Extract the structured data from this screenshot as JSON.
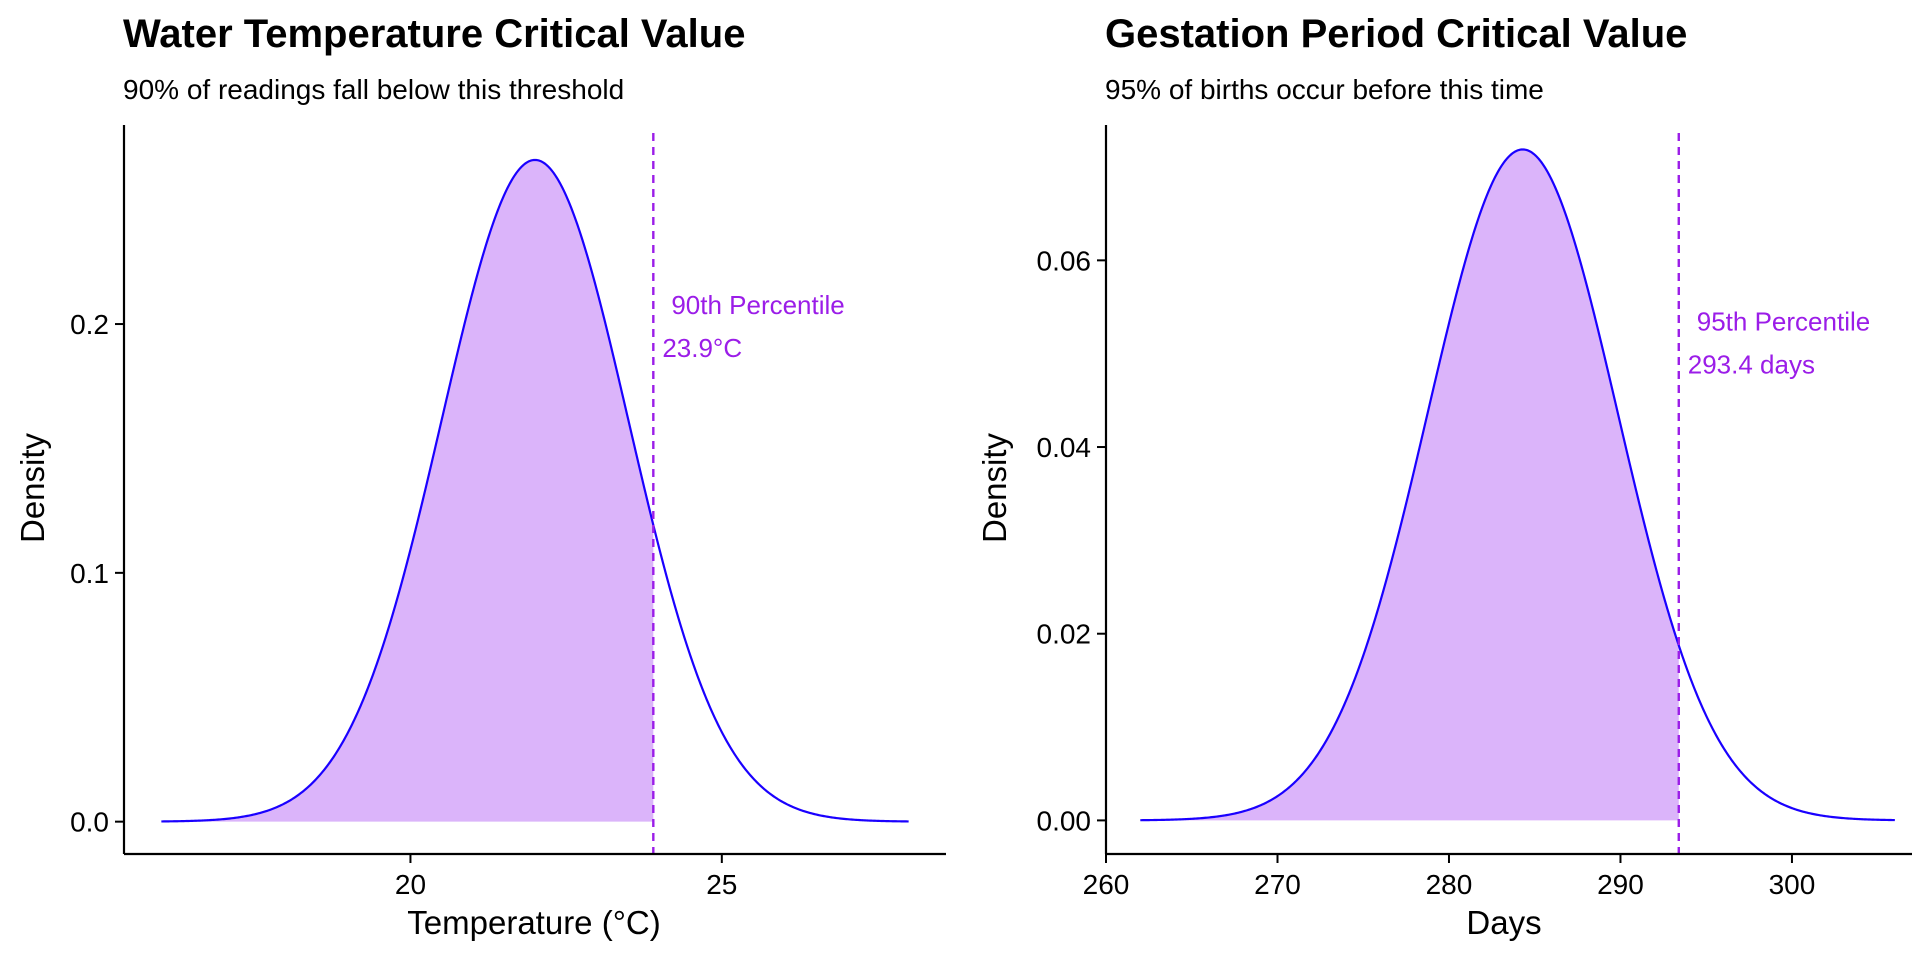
{
  "chart_data": [
    {
      "type": "area",
      "title": "Water Temperature Critical Value",
      "subtitle": "90% of readings fall below this threshold",
      "xlabel": "Temperature (°C)",
      "ylabel": "Density",
      "xlim": [
        15.4,
        28.6
      ],
      "ylim": [
        -0.013,
        0.28
      ],
      "x_ticks": [
        20,
        25
      ],
      "x_tick_labels": [
        "20",
        "25"
      ],
      "y_ticks": [
        0.0,
        0.1,
        0.2
      ],
      "y_tick_labels": [
        "0.0",
        "0.1",
        "0.2"
      ],
      "distribution": {
        "kind": "normal",
        "mean": 22.0,
        "sd": 1.5,
        "x_min": 16.0,
        "x_max": 28.0
      },
      "critical_value": 23.9,
      "shaded_region": "below critical value",
      "annotation_lines": [
        "90th Percentile",
        "23.9°C"
      ],
      "grid": false,
      "colors": {
        "curve": "#1a00ff",
        "fill": "#dbb4fa",
        "critical_line": "#9b1de8",
        "annotation": "#9b1de8"
      }
    },
    {
      "type": "area",
      "title": "Gestation Period Critical Value",
      "subtitle": "95% of births occur before this time",
      "xlabel": "Days",
      "ylabel": "Density",
      "xlim": [
        260,
        307
      ],
      "ylim": [
        -0.0036,
        0.0745
      ],
      "x_ticks": [
        260,
        270,
        280,
        290,
        300
      ],
      "x_tick_labels": [
        "260",
        "270",
        "280",
        "290",
        "300"
      ],
      "y_ticks": [
        0.0,
        0.02,
        0.04,
        0.06
      ],
      "y_tick_labels": [
        "0.00",
        "0.02",
        "0.04",
        "0.06"
      ],
      "distribution": {
        "kind": "normal",
        "mean": 284.3,
        "sd": 5.55,
        "x_min": 262.0,
        "x_max": 306.0
      },
      "critical_value": 293.4,
      "shaded_region": "below critical value",
      "annotation_lines": [
        "95th Percentile",
        "293.4 days"
      ],
      "grid": false,
      "colors": {
        "curve": "#1a00ff",
        "fill": "#dbb4fa",
        "critical_line": "#9b1de8",
        "annotation": "#9b1de8"
      }
    }
  ]
}
